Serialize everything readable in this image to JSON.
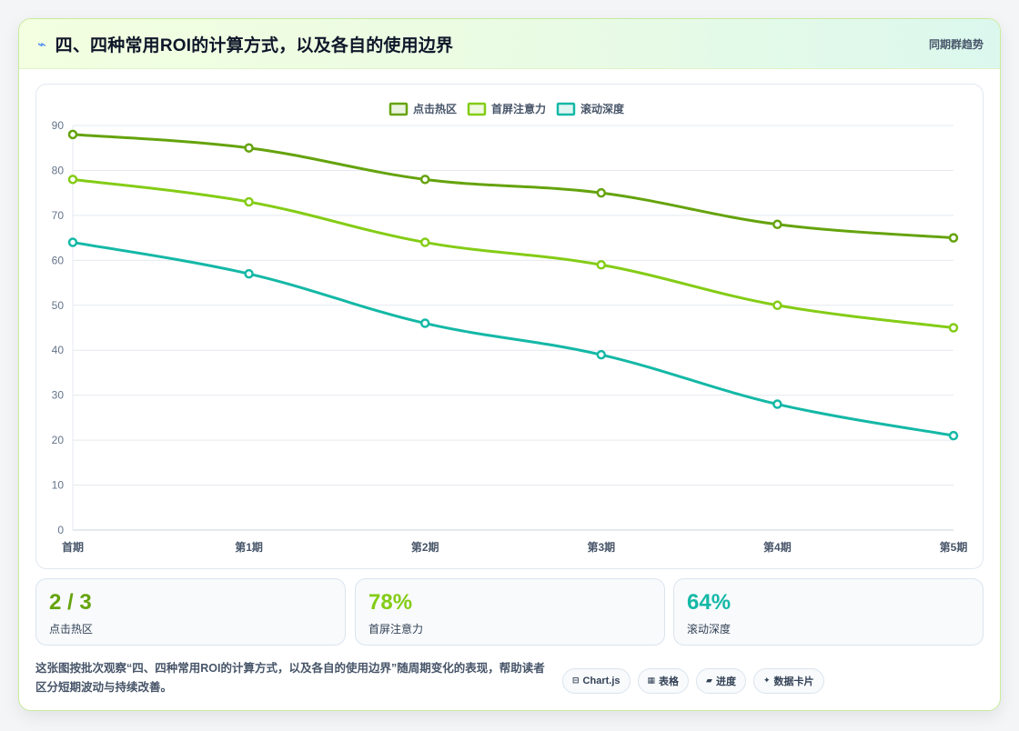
{
  "header": {
    "title": "四、四种常用ROI的计算方式，以及各自的使用边界",
    "right_label": "同期群趋势",
    "icon": "lightning-icon"
  },
  "chart_data": {
    "type": "line",
    "categories": [
      "首期",
      "第1期",
      "第2期",
      "第3期",
      "第4期",
      "第5期"
    ],
    "series": [
      {
        "name": "点击热区",
        "values": [
          88,
          85,
          78,
          75,
          68,
          65
        ],
        "color": "#65a30d"
      },
      {
        "name": "首屏注意力",
        "values": [
          78,
          73,
          64,
          59,
          50,
          45
        ],
        "color": "#84cc16"
      },
      {
        "name": "滚动深度",
        "values": [
          64,
          57,
          46,
          39,
          28,
          21
        ],
        "color": "#14b8a6"
      }
    ],
    "ylim": [
      0,
      90
    ],
    "yticks": [
      0,
      10,
      20,
      30,
      40,
      50,
      60,
      70,
      80,
      90
    ],
    "legend": "top-center",
    "grid": true
  },
  "stats": [
    {
      "value": "2 / 3",
      "label": "点击热区",
      "color": "#65a30d"
    },
    {
      "value": "78%",
      "label": "首屏注意力",
      "color": "#84cc16"
    },
    {
      "value": "64%",
      "label": "滚动深度",
      "color": "#14b8a6"
    }
  ],
  "footer": {
    "description": "这张图按批次观察“四、四种常用ROI的计算方式，以及各自的使用边界”随周期变化的表现，帮助读者区分短期波动与持续改善。",
    "pills": [
      {
        "icon": "chart-icon",
        "glyph": "⊟",
        "label": "Chart.js"
      },
      {
        "icon": "table-icon",
        "glyph": "▦",
        "label": "表格"
      },
      {
        "icon": "progress-icon",
        "glyph": "▰",
        "label": "进度"
      },
      {
        "icon": "card-icon",
        "glyph": "✦",
        "label": "数据卡片"
      }
    ]
  }
}
